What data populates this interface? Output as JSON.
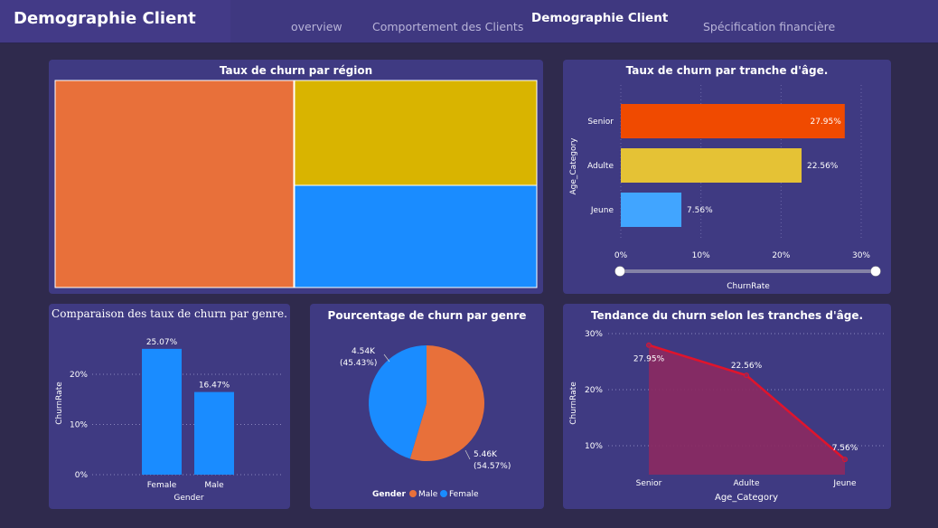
{
  "header": {
    "title": "Demographie Client",
    "tabs": [
      {
        "label": "overview",
        "active": false
      },
      {
        "label": "Comportement des Clients",
        "active": false
      },
      {
        "label": "Demographie Client",
        "active": true
      },
      {
        "label": "Spécification financière",
        "active": false
      }
    ]
  },
  "colors": {
    "background": "#2f2a4d",
    "card": "#3f3a82",
    "orange": "#e8703a",
    "yellow": "#d9b400",
    "blue": "#1a8cff",
    "senior": "#f04a00",
    "adulte": "#e5c235",
    "jeune": "#41a5ff",
    "red_line": "#e0142c"
  },
  "cards": {
    "treemap_title": "Taux de churn par région",
    "age_bar_title": "Taux de churn par tranche d'âge.",
    "gender_bar_title": "Comparaison des taux de churn par genre.",
    "pie_title": "Pourcentage de churn par genre",
    "area_title": "Tendance du churn selon les tranches d'âge."
  },
  "chart_data": [
    {
      "type": "treemap",
      "title": "Taux de churn par région",
      "nodes": [
        {
          "value": 50,
          "color": "#e8703a"
        },
        {
          "value": 25,
          "color": "#d9b400"
        },
        {
          "value": 25,
          "color": "#1a8cff"
        }
      ]
    },
    {
      "type": "bar",
      "orientation": "horizontal",
      "title": "Taux de churn par tranche d'âge.",
      "categories": [
        "Senior",
        "Adulte",
        "Jeune"
      ],
      "values": [
        27.95,
        22.56,
        7.56
      ],
      "labels": [
        "27.95%",
        "22.56%",
        "7.56%"
      ],
      "colors": [
        "#f04a00",
        "#e5c235",
        "#41a5ff"
      ],
      "xlabel": "ChurnRate",
      "ylabel": "Age_Category",
      "xticks": [
        "0%",
        "10%",
        "20%",
        "30%"
      ],
      "xlim": [
        0,
        30
      ],
      "grid": true
    },
    {
      "type": "bar",
      "title": "Comparaison des taux de churn par genre.",
      "categories": [
        "Female",
        "Male"
      ],
      "values": [
        25.07,
        16.47
      ],
      "labels": [
        "25.07%",
        "16.47%"
      ],
      "xlabel": "Gender",
      "ylabel": "ChurnRate",
      "yticks": [
        "0%",
        "10%",
        "20%"
      ],
      "ylim": [
        0,
        27
      ],
      "grid": true
    },
    {
      "type": "pie",
      "title": "Pourcentage de churn par genre",
      "slices": [
        {
          "name": "Male",
          "value": 5.46,
          "label": "5.46K",
          "pct": "(54.57%)",
          "color": "#e8703a"
        },
        {
          "name": "Female",
          "value": 4.54,
          "label": "4.54K",
          "pct": "(45.43%)",
          "color": "#1a8cff"
        }
      ],
      "legend_title": "Gender",
      "legend_position": "bottom"
    },
    {
      "type": "area",
      "title": "Tendance du churn selon les tranches d'âge.",
      "categories": [
        "Senior",
        "Adulte",
        "Jeune"
      ],
      "values": [
        27.95,
        22.56,
        7.56
      ],
      "labels": [
        "27.95%",
        "22.56%",
        "7.56%"
      ],
      "xlabel": "Age_Category",
      "ylabel": "ChurnRate",
      "yticks": [
        "10%",
        "20%",
        "30%"
      ],
      "ylim": [
        5,
        30
      ],
      "grid": true
    }
  ]
}
